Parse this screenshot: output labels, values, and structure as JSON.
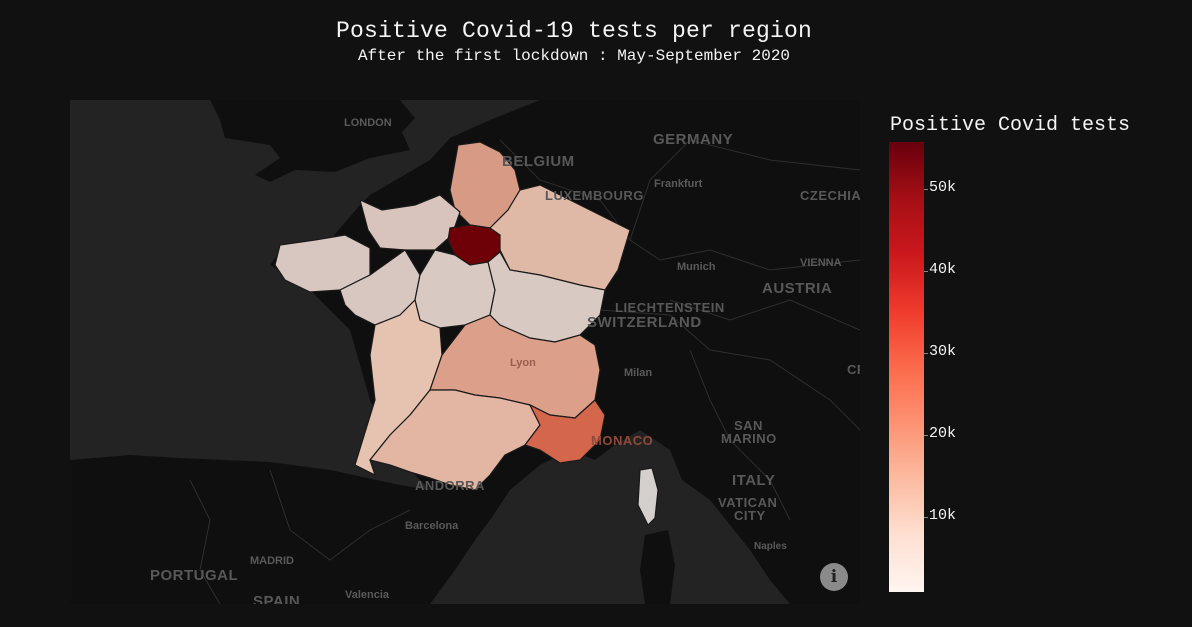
{
  "title": "Positive Covid-19 tests per region",
  "subtitle": "After the first lockdown : May-September 2020",
  "colorbar": {
    "title": "Positive Covid tests",
    "ticks": [
      "10k",
      "20k",
      "30k",
      "40k",
      "50k"
    ],
    "colorscale": [
      "#fff5f0",
      "#fee0d2",
      "#fcbba1",
      "#fc9272",
      "#fb6a4a",
      "#ef3b2c",
      "#cb181d",
      "#a50f15",
      "#67000d"
    ]
  },
  "basemap_labels": {
    "cities": [
      "LONDON",
      "Frankfurt",
      "Munich",
      "VIENNA",
      "Lyon",
      "Milan",
      "Barcelona",
      "MADRID",
      "Valencia",
      "Naples"
    ],
    "countries": [
      "GERMANY",
      "BELGIUM",
      "LUXEMBOURG",
      "CZECHIA",
      "AUSTRIA",
      "LIECHTENSTEIN",
      "SWITZERLAND",
      "SAN",
      "MARINO",
      "MONACO",
      "ITALY",
      "VATICAN",
      "CITY",
      "ANDORRA",
      "PORTUGAL",
      "SPAIN",
      "CRO"
    ]
  },
  "info_icon": "i"
}
